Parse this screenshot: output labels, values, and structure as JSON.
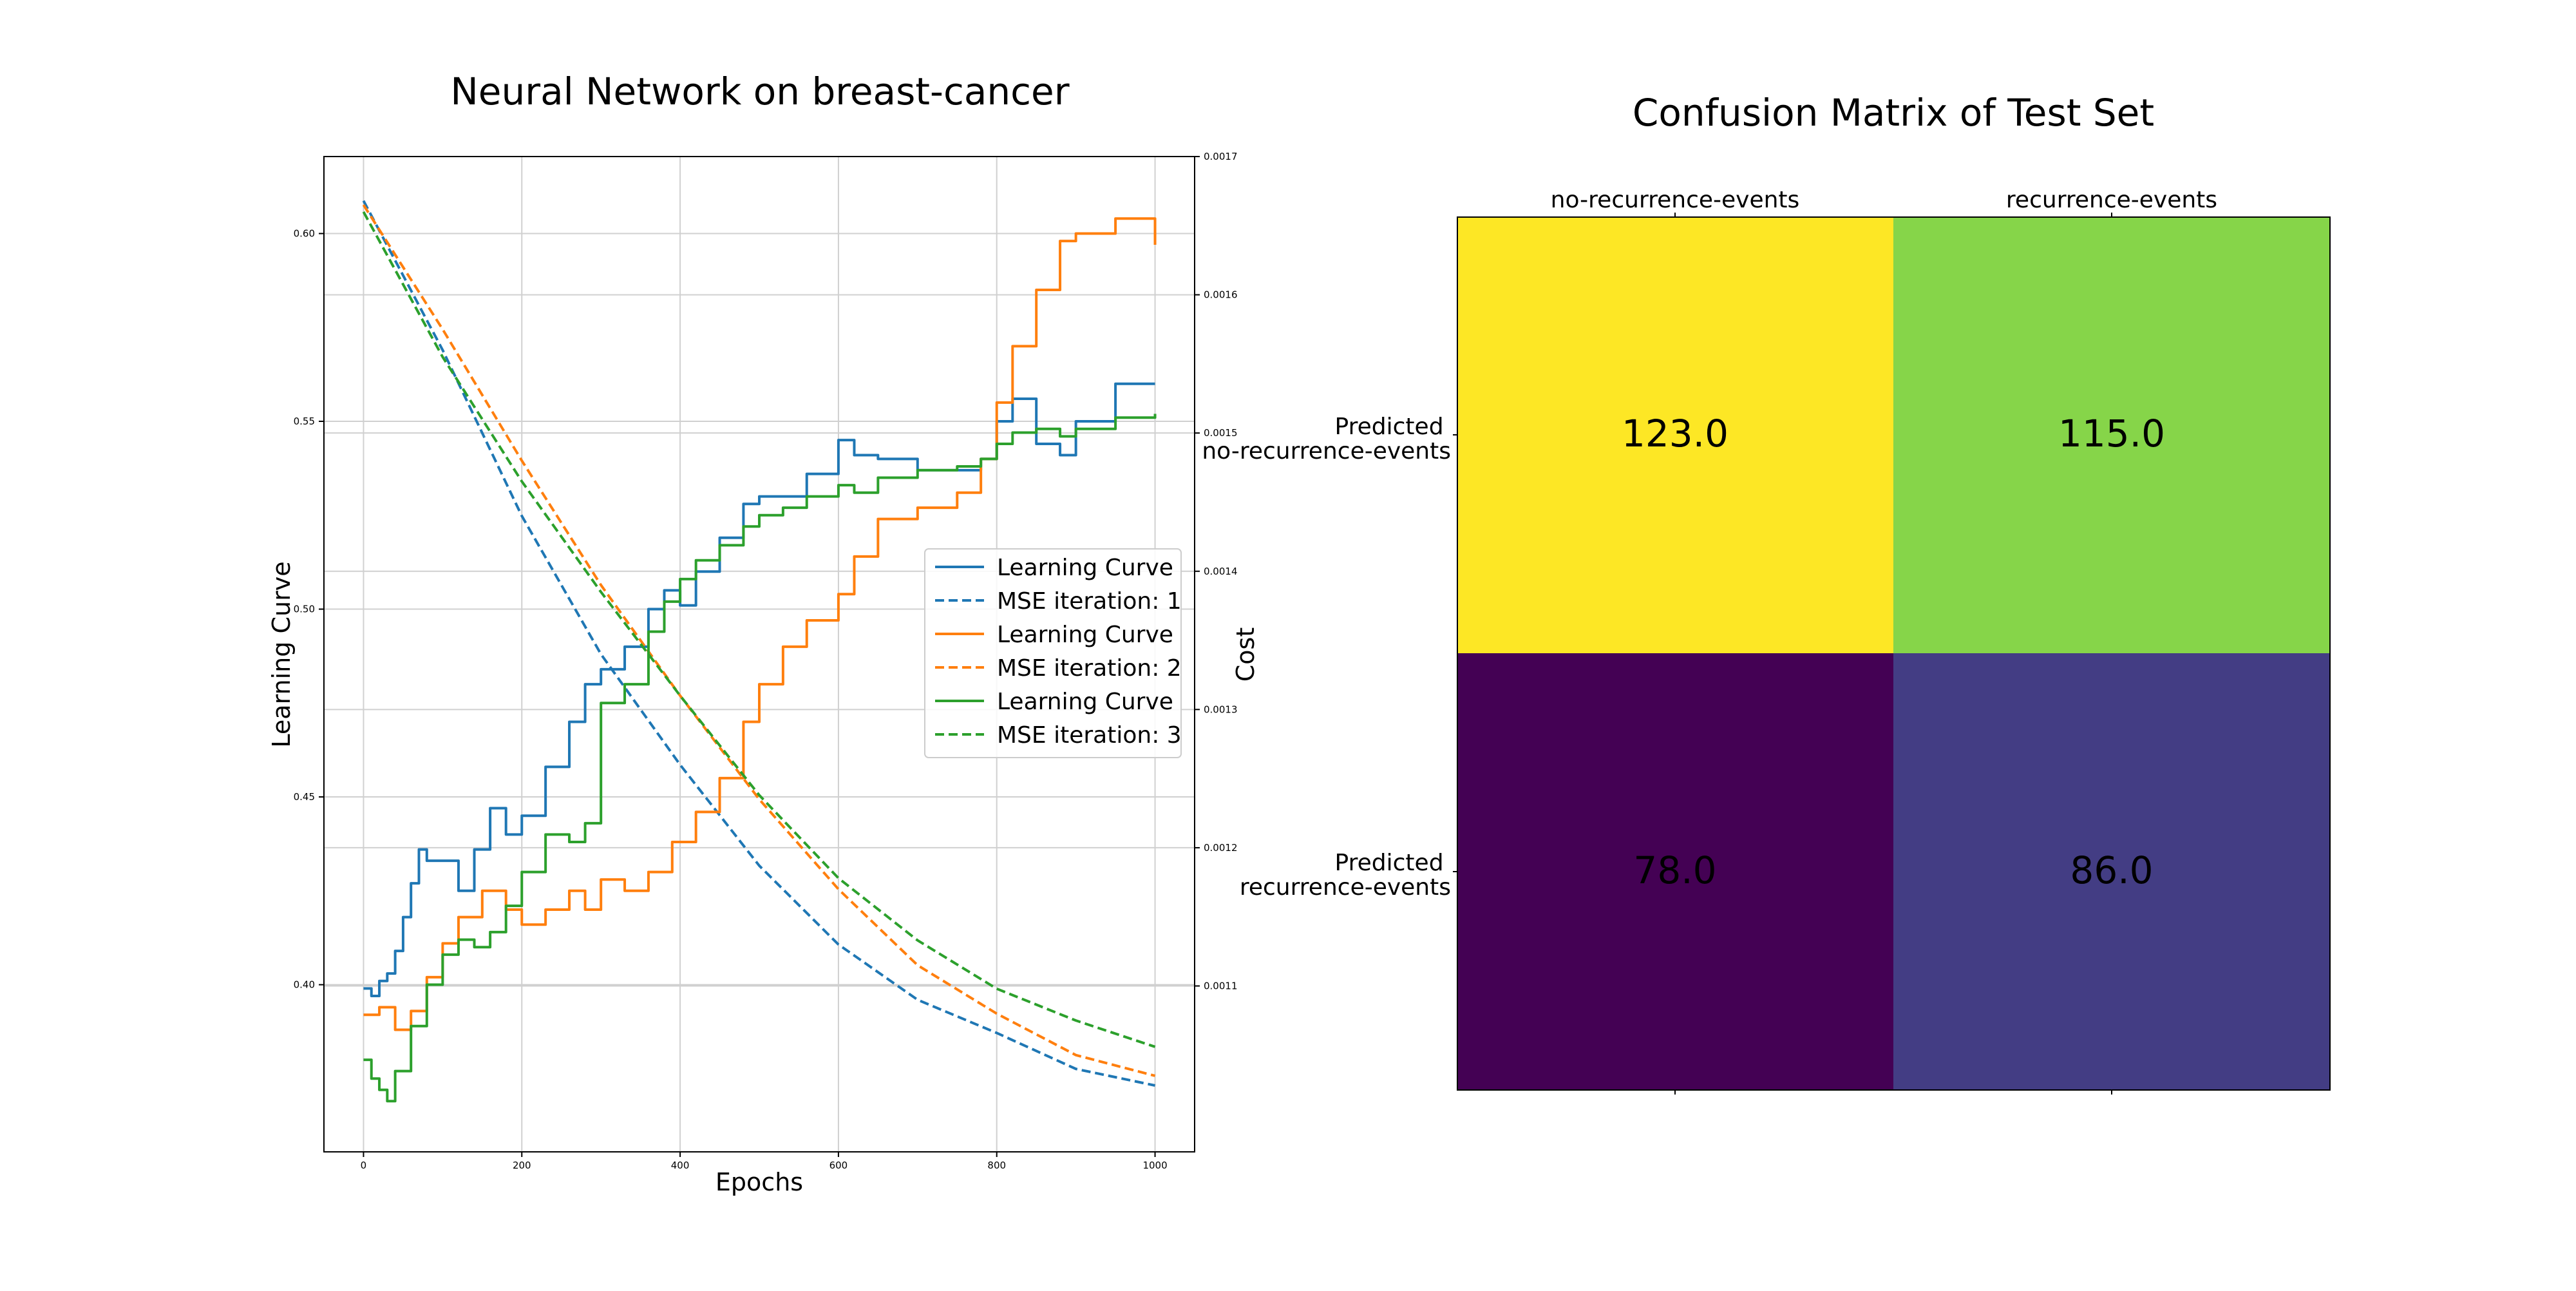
{
  "chart_data": [
    {
      "type": "line",
      "title": "Neural Network on breast-cancer",
      "xlabel": "Epochs",
      "ylabel": "Learning Curve",
      "y2label": "Cost",
      "xlim": [
        -50,
        1050
      ],
      "ylim": [
        0.3555,
        0.6205
      ],
      "y2lim": [
        0.00098,
        0.0017
      ],
      "xticks": [
        0,
        200,
        400,
        600,
        800,
        1000
      ],
      "yticks": [
        0.4,
        0.45,
        0.5,
        0.55,
        0.6
      ],
      "yticklabels": [
        "0.40",
        "0.45",
        "0.50",
        "0.55",
        "0.60"
      ],
      "y2ticks": [
        0.0011,
        0.0012,
        0.0013,
        0.0014,
        0.0015,
        0.0016,
        0.0017
      ],
      "y2ticklabels": [
        "0.0011",
        "0.0012",
        "0.0013",
        "0.0014",
        "0.0015",
        "0.0016",
        "0.0017"
      ],
      "grid": true,
      "legend_position": "center-right",
      "series": [
        {
          "name": "Learning Curve",
          "axis": "left",
          "style": "solid",
          "color": "#1f77b4",
          "x": [
            0,
            10,
            20,
            30,
            40,
            50,
            60,
            70,
            80,
            100,
            120,
            140,
            160,
            180,
            200,
            230,
            260,
            280,
            300,
            330,
            360,
            380,
            400,
            420,
            450,
            480,
            500,
            530,
            560,
            600,
            620,
            650,
            700,
            750,
            780,
            800,
            820,
            850,
            880,
            900,
            950,
            1000
          ],
          "y": [
            0.399,
            0.397,
            0.401,
            0.403,
            0.409,
            0.418,
            0.427,
            0.436,
            0.433,
            0.433,
            0.425,
            0.436,
            0.447,
            0.44,
            0.445,
            0.458,
            0.47,
            0.48,
            0.484,
            0.49,
            0.5,
            0.505,
            0.501,
            0.51,
            0.519,
            0.528,
            0.53,
            0.53,
            0.536,
            0.545,
            0.541,
            0.54,
            0.537,
            0.537,
            0.54,
            0.55,
            0.556,
            0.544,
            0.541,
            0.55,
            0.56,
            0.56
          ]
        },
        {
          "name": "MSE iteration: 1",
          "axis": "right",
          "style": "dashed",
          "color": "#1f77b4",
          "x": [
            0,
            100,
            200,
            300,
            400,
            500,
            600,
            700,
            800,
            900,
            1000
          ],
          "y": [
            0.001668,
            0.00156,
            0.00144,
            0.00134,
            0.00126,
            0.001187,
            0.00113,
            0.00109,
            0.001066,
            0.00104,
            0.001028
          ]
        },
        {
          "name": "Learning Curve",
          "axis": "left",
          "style": "solid",
          "color": "#ff7f0e",
          "x": [
            0,
            20,
            40,
            60,
            80,
            100,
            120,
            150,
            180,
            200,
            230,
            260,
            280,
            300,
            330,
            360,
            390,
            420,
            450,
            480,
            500,
            530,
            560,
            600,
            620,
            650,
            700,
            750,
            780,
            800,
            820,
            850,
            880,
            900,
            950,
            1000
          ],
          "y": [
            0.392,
            0.394,
            0.388,
            0.393,
            0.402,
            0.411,
            0.418,
            0.425,
            0.42,
            0.416,
            0.42,
            0.425,
            0.42,
            0.428,
            0.425,
            0.43,
            0.438,
            0.446,
            0.455,
            0.47,
            0.48,
            0.49,
            0.497,
            0.504,
            0.514,
            0.524,
            0.527,
            0.531,
            0.54,
            0.555,
            0.57,
            0.585,
            0.598,
            0.6,
            0.604,
            0.597
          ]
        },
        {
          "name": "MSE iteration: 2",
          "axis": "right",
          "style": "dashed",
          "color": "#ff7f0e",
          "x": [
            0,
            100,
            200,
            300,
            400,
            500,
            600,
            700,
            800,
            900,
            1000
          ],
          "y": [
            0.001665,
            0.001575,
            0.00148,
            0.00139,
            0.00131,
            0.001235,
            0.00117,
            0.001115,
            0.00108,
            0.00105,
            0.001035
          ]
        },
        {
          "name": "Learning Curve",
          "axis": "left",
          "style": "solid",
          "color": "#2ca02c",
          "x": [
            0,
            10,
            20,
            30,
            40,
            60,
            80,
            100,
            120,
            140,
            160,
            180,
            200,
            230,
            260,
            280,
            300,
            330,
            360,
            380,
            400,
            420,
            450,
            480,
            500,
            530,
            560,
            600,
            620,
            650,
            700,
            750,
            780,
            800,
            820,
            850,
            880,
            900,
            950,
            1000
          ],
          "y": [
            0.38,
            0.375,
            0.372,
            0.369,
            0.377,
            0.389,
            0.4,
            0.408,
            0.412,
            0.41,
            0.414,
            0.421,
            0.43,
            0.44,
            0.438,
            0.443,
            0.475,
            0.48,
            0.494,
            0.502,
            0.508,
            0.513,
            0.517,
            0.522,
            0.525,
            0.527,
            0.53,
            0.533,
            0.531,
            0.535,
            0.537,
            0.538,
            0.54,
            0.544,
            0.547,
            0.548,
            0.546,
            0.548,
            0.551,
            0.552
          ]
        },
        {
          "name": "MSE iteration: 3",
          "axis": "right",
          "style": "dashed",
          "color": "#2ca02c",
          "x": [
            0,
            100,
            200,
            300,
            400,
            500,
            600,
            700,
            800,
            900,
            1000
          ],
          "y": [
            0.00166,
            0.001555,
            0.001465,
            0.001385,
            0.00131,
            0.001238,
            0.001178,
            0.001133,
            0.001098,
            0.001075,
            0.001056
          ]
        }
      ]
    },
    {
      "type": "heatmap",
      "title": "Confusion Matrix of Test Set",
      "col_labels": [
        "no-recurrence-events",
        "recurrence-events"
      ],
      "row_labels": [
        [
          "Predicted",
          "no-recurrence-events"
        ],
        [
          "Predicted",
          "recurrence-events"
        ]
      ],
      "values": [
        [
          123.0,
          115.0
        ],
        [
          78.0,
          86.0
        ]
      ],
      "value_labels": [
        [
          "123.0",
          "115.0"
        ],
        [
          "78.0",
          "86.0"
        ]
      ],
      "colormap": "viridis",
      "cell_colors": [
        [
          "#fde725",
          "#86d549"
        ],
        [
          "#440154",
          "#433d84"
        ]
      ]
    }
  ]
}
